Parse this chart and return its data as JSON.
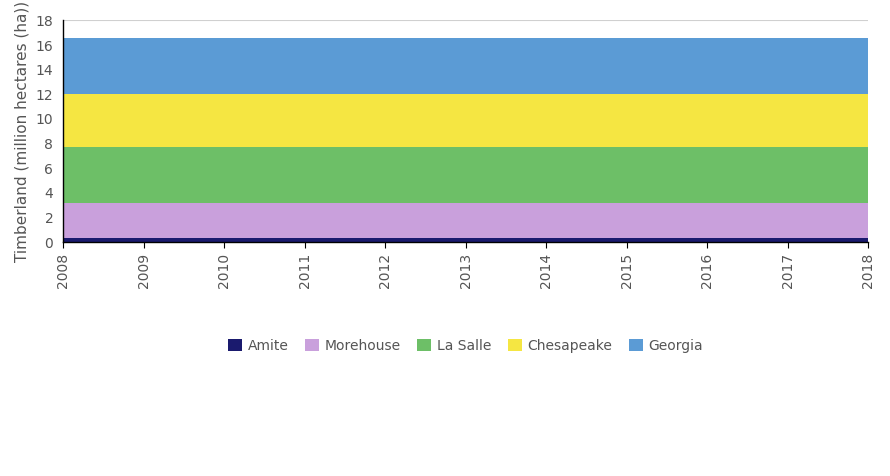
{
  "years": [
    2008,
    2009,
    2010,
    2011,
    2012,
    2013,
    2014,
    2015,
    2016,
    2017,
    2018
  ],
  "series": {
    "Amite": [
      0.3,
      0.3,
      0.3,
      0.3,
      0.3,
      0.3,
      0.3,
      0.3,
      0.3,
      0.3,
      0.3
    ],
    "Morehouse": [
      2.85,
      2.85,
      2.85,
      2.85,
      2.85,
      2.85,
      2.85,
      2.85,
      2.85,
      2.85,
      2.85
    ],
    "La Salle": [
      4.55,
      4.55,
      4.55,
      4.55,
      4.55,
      4.55,
      4.55,
      4.55,
      4.55,
      4.55,
      4.55
    ],
    "Chesapeake": [
      4.35,
      4.35,
      4.35,
      4.35,
      4.35,
      4.35,
      4.35,
      4.35,
      4.35,
      4.35,
      4.35
    ],
    "Georgia": [
      4.5,
      4.5,
      4.5,
      4.5,
      4.5,
      4.5,
      4.5,
      4.5,
      4.5,
      4.5,
      4.5
    ]
  },
  "colors": {
    "Amite": "#1a1a6e",
    "Morehouse": "#c9a0dc",
    "La Salle": "#6dbf67",
    "Chesapeake": "#f5e642",
    "Georgia": "#5b9bd5"
  },
  "ylabel": "Timberland (million hectares (ha))",
  "ylim": [
    0,
    18
  ],
  "yticks": [
    0,
    2,
    4,
    6,
    8,
    10,
    12,
    14,
    16,
    18
  ],
  "xlim": [
    2008,
    2018
  ],
  "legend_order": [
    "Amite",
    "Morehouse",
    "La Salle",
    "Chesapeake",
    "Georgia"
  ],
  "background_color": "#ffffff",
  "grid_color": "#d0d0d0",
  "tick_label_fontsize": 10,
  "ylabel_fontsize": 11,
  "legend_fontsize": 10,
  "spine_color": "#000000",
  "tick_color": "#555555"
}
